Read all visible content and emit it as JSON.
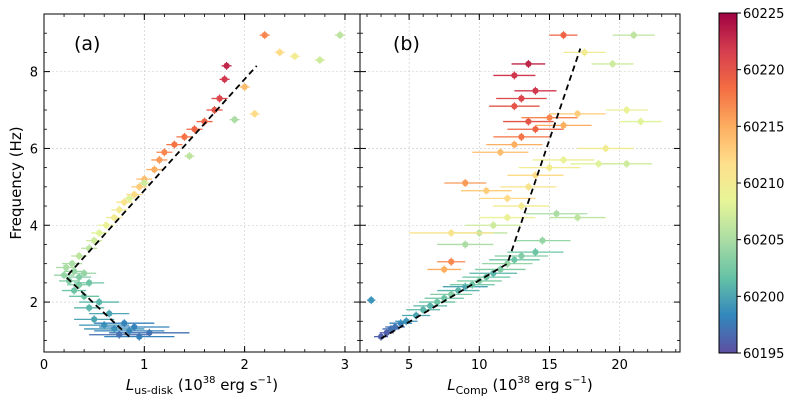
{
  "chart_data": [
    {
      "type": "scatter",
      "panel_label": "(a)",
      "xlabel_main": "L",
      "xlabel_sub": "us-disk",
      "xlabel_unit_pre": " (10",
      "xlabel_unit_exp": "38",
      "xlabel_unit_post": " erg s",
      "xlabel_unit_exp2": "−1",
      "xlabel_unit_close": ")",
      "ylabel": "Frequency (Hz)",
      "xlim": [
        0,
        3.15
      ],
      "ylim": [
        0.7,
        9.5
      ],
      "xticks": [
        0,
        1,
        2,
        3
      ],
      "xtick_labels": [
        "0",
        "1",
        "2",
        "3"
      ],
      "yticks": [
        2,
        4,
        6,
        8
      ],
      "ytick_labels": [
        "2",
        "4",
        "6",
        "8"
      ],
      "grid": true,
      "fit_line": [
        [
          0.85,
          1.1
        ],
        [
          0.22,
          2.65
        ],
        [
          2.12,
          8.15
        ]
      ],
      "points": [
        [
          0.95,
          1.1,
          60198,
          0.35
        ],
        [
          0.75,
          1.15,
          60197,
          0.3
        ],
        [
          1.05,
          1.2,
          60197,
          0.4
        ],
        [
          0.85,
          1.25,
          60198,
          0.35
        ],
        [
          0.7,
          1.3,
          60199,
          0.3
        ],
        [
          0.9,
          1.35,
          60198,
          0.35
        ],
        [
          0.6,
          1.4,
          60199,
          0.25
        ],
        [
          0.8,
          1.45,
          60198,
          0.3
        ],
        [
          0.5,
          1.55,
          60200,
          0.2
        ],
        [
          0.65,
          1.7,
          60200,
          0.2
        ],
        [
          0.45,
          1.85,
          60201,
          0.15
        ],
        [
          0.55,
          2.0,
          60201,
          0.2
        ],
        [
          0.4,
          2.15,
          60202,
          0.15
        ],
        [
          0.3,
          2.3,
          60202,
          0.12
        ],
        [
          0.35,
          2.45,
          60203,
          0.12
        ],
        [
          0.25,
          2.55,
          60203,
          0.1
        ],
        [
          0.2,
          2.7,
          60204,
          0.1
        ],
        [
          0.3,
          2.8,
          60204,
          0.1
        ],
        [
          0.22,
          2.9,
          60205,
          0.1
        ],
        [
          0.28,
          3.0,
          60205,
          0.1
        ],
        [
          0.35,
          2.65,
          60203,
          0.12
        ],
        [
          0.45,
          2.5,
          60202,
          0.15
        ],
        [
          0.4,
          2.75,
          60204,
          0.12
        ],
        [
          0.35,
          3.2,
          60206,
          0.08
        ],
        [
          0.45,
          3.4,
          60206,
          0.08
        ],
        [
          0.5,
          3.6,
          60207,
          0.08
        ],
        [
          0.55,
          3.8,
          60208,
          0.08
        ],
        [
          0.62,
          4.0,
          60209,
          0.08
        ],
        [
          0.7,
          4.2,
          60210,
          0.08
        ],
        [
          0.75,
          4.4,
          60210,
          0.08
        ],
        [
          0.8,
          4.6,
          60211,
          0.08
        ],
        [
          0.9,
          4.8,
          60212,
          0.08
        ],
        [
          0.95,
          5.0,
          60213,
          0.08
        ],
        [
          1.0,
          5.2,
          60214,
          0.08
        ],
        [
          1.1,
          5.45,
          60215,
          0.08
        ],
        [
          1.15,
          5.7,
          60216,
          0.08
        ],
        [
          1.2,
          5.9,
          60217,
          0.08
        ],
        [
          1.3,
          6.1,
          60218,
          0.08
        ],
        [
          1.4,
          6.3,
          60218,
          0.08
        ],
        [
          1.5,
          6.5,
          60219,
          0.08
        ],
        [
          1.6,
          6.7,
          60219,
          0.08
        ],
        [
          1.7,
          7.0,
          60220,
          0.08
        ],
        [
          1.75,
          7.3,
          60221,
          0.08
        ],
        [
          1.8,
          7.8,
          60222,
          0.05
        ],
        [
          1.82,
          8.15,
          60223,
          0.05
        ],
        [
          0.85,
          4.7,
          60208,
          0.05
        ],
        [
          1.0,
          5.1,
          60207,
          0.05
        ],
        [
          1.45,
          5.8,
          60206,
          0.05
        ],
        [
          1.9,
          6.75,
          60205,
          0.05
        ],
        [
          2.0,
          7.6,
          60214,
          0.05
        ],
        [
          2.2,
          8.95,
          60217,
          0.05
        ],
        [
          2.35,
          8.5,
          60212,
          0.05
        ],
        [
          2.5,
          8.4,
          60210,
          0.05
        ],
        [
          2.75,
          8.3,
          60207,
          0.05
        ],
        [
          2.95,
          8.95,
          60206,
          0.05
        ],
        [
          2.1,
          6.9,
          60212,
          0.05
        ]
      ]
    },
    {
      "type": "scatter",
      "panel_label": "(b)",
      "xlabel_main": "L",
      "xlabel_sub": "Comp",
      "xlabel_unit_pre": " (10",
      "xlabel_unit_exp": "38",
      "xlabel_unit_post": " erg s",
      "xlabel_unit_exp2": "−1",
      "xlabel_unit_close": ")",
      "xlim": [
        1.5,
        24.3
      ],
      "ylim": [
        0.7,
        9.5
      ],
      "xticks": [
        5,
        10,
        15,
        20
      ],
      "xtick_labels": [
        "5",
        "10",
        "15",
        "20"
      ],
      "grid": true,
      "fit_line": [
        [
          3.0,
          1.05
        ],
        [
          12.0,
          3.0
        ],
        [
          17.2,
          8.6
        ]
      ],
      "points": [
        [
          2.3,
          2.05,
          60199,
          0.3
        ],
        [
          3.0,
          1.1,
          60196,
          0.5
        ],
        [
          3.4,
          1.2,
          60196,
          0.5
        ],
        [
          3.7,
          1.3,
          60197,
          0.6
        ],
        [
          4.0,
          1.35,
          60197,
          0.7
        ],
        [
          4.4,
          1.45,
          60198,
          0.8
        ],
        [
          4.8,
          1.5,
          60199,
          0.8
        ],
        [
          5.5,
          1.65,
          60200,
          1.0
        ],
        [
          6.0,
          1.8,
          60201,
          1.2
        ],
        [
          6.5,
          1.9,
          60201,
          1.2
        ],
        [
          7.0,
          2.0,
          60202,
          1.3
        ],
        [
          7.5,
          2.1,
          60202,
          1.4
        ],
        [
          8.0,
          2.2,
          60203,
          1.5
        ],
        [
          8.5,
          2.3,
          60201,
          1.5
        ],
        [
          9.0,
          2.4,
          60200,
          1.6
        ],
        [
          9.5,
          2.45,
          60202,
          1.6
        ],
        [
          10.0,
          2.55,
          60203,
          1.6
        ],
        [
          10.5,
          2.65,
          60202,
          1.7
        ],
        [
          11.0,
          2.75,
          60201,
          1.7
        ],
        [
          11.5,
          2.85,
          60203,
          1.8
        ],
        [
          12.0,
          3.0,
          60204,
          1.8
        ],
        [
          12.5,
          3.1,
          60202,
          1.8
        ],
        [
          13.0,
          3.2,
          60203,
          1.9
        ],
        [
          14.0,
          3.3,
          60202,
          2.0
        ],
        [
          9.0,
          3.5,
          60205,
          2.0
        ],
        [
          10.0,
          3.8,
          60206,
          2.0
        ],
        [
          11.0,
          4.0,
          60207,
          2.0
        ],
        [
          12.0,
          4.2,
          60209,
          2.0
        ],
        [
          8.0,
          3.8,
          60211,
          3.0
        ],
        [
          14.5,
          3.6,
          60204,
          2.0
        ],
        [
          15.5,
          4.3,
          60205,
          2.2
        ],
        [
          17.0,
          4.2,
          60206,
          2.0
        ],
        [
          13.0,
          4.5,
          60210,
          2.0
        ],
        [
          12.0,
          4.7,
          60212,
          2.0
        ],
        [
          10.5,
          4.9,
          60213,
          1.8
        ],
        [
          9.0,
          5.1,
          60216,
          1.5
        ],
        [
          8.0,
          3.05,
          60217,
          1.0
        ],
        [
          7.5,
          2.85,
          60215,
          1.2
        ],
        [
          13.5,
          5.0,
          60211,
          2.0
        ],
        [
          14.0,
          5.3,
          60212,
          2.0
        ],
        [
          15.0,
          5.5,
          60210,
          2.2
        ],
        [
          16.0,
          5.7,
          60209,
          2.2
        ],
        [
          18.5,
          5.6,
          60208,
          2.0
        ],
        [
          20.5,
          5.6,
          60207,
          1.8
        ],
        [
          11.5,
          5.9,
          60214,
          2.0
        ],
        [
          12.5,
          6.1,
          60215,
          2.0
        ],
        [
          13.0,
          6.3,
          60218,
          2.0
        ],
        [
          14.0,
          6.5,
          60219,
          2.0
        ],
        [
          13.5,
          6.7,
          60220,
          1.8
        ],
        [
          15.0,
          6.8,
          60217,
          2.0
        ],
        [
          16.0,
          6.6,
          60215,
          2.0
        ],
        [
          17.0,
          6.9,
          60213,
          2.0
        ],
        [
          12.5,
          7.1,
          60220,
          1.8
        ],
        [
          13.0,
          7.3,
          60221,
          1.8
        ],
        [
          14.0,
          7.5,
          60222,
          1.5
        ],
        [
          12.5,
          7.9,
          60222,
          1.5
        ],
        [
          13.5,
          8.2,
          60223,
          1.2
        ],
        [
          16.0,
          8.95,
          60219,
          1.0
        ],
        [
          17.5,
          8.5,
          60210,
          1.5
        ],
        [
          19.5,
          8.2,
          60207,
          1.5
        ],
        [
          21.0,
          8.95,
          60206,
          1.5
        ],
        [
          21.5,
          6.7,
          60208,
          1.5
        ],
        [
          20.5,
          7.0,
          60209,
          1.5
        ],
        [
          19.0,
          6.0,
          60210,
          2.0
        ]
      ]
    }
  ],
  "colorbar": {
    "vmin": 60195,
    "vmax": 60225,
    "ticks": [
      60195,
      60200,
      60205,
      60210,
      60215,
      60220,
      60225
    ],
    "tick_labels": [
      "60195",
      "60200",
      "60205",
      "60210",
      "60215",
      "60220",
      "60225"
    ],
    "stops": [
      "#5e4fa2",
      "#3288bd",
      "#66c2a5",
      "#abdda4",
      "#e6f598",
      "#fee08b",
      "#fdae61",
      "#f46d43",
      "#d53e4f",
      "#9e0142"
    ]
  }
}
